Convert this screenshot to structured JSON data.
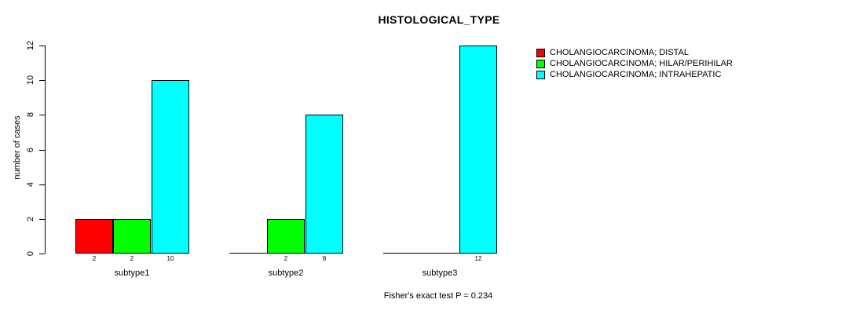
{
  "chart_data": {
    "type": "bar",
    "title": "HISTOLOGICAL_TYPE",
    "ylabel": "number of cases",
    "xlabel": "",
    "categories": [
      "subtype1",
      "subtype2",
      "subtype3"
    ],
    "series": [
      {
        "name": "CHOLANGIOCARCINOMA; DISTAL",
        "color": "#ff0000",
        "values": [
          2,
          0,
          0
        ]
      },
      {
        "name": "CHOLANGIOCARCINOMA; HILAR/PERIHILAR",
        "color": "#00ff00",
        "values": [
          2,
          2,
          0
        ]
      },
      {
        "name": "CHOLANGIOCARCINOMA; INTRAHEPATIC",
        "color": "#00ffff",
        "values": [
          10,
          8,
          12
        ]
      }
    ],
    "bar_labels": [
      [
        "2",
        "2",
        "10"
      ],
      [
        "",
        "2",
        "8"
      ],
      [
        "",
        "",
        "12"
      ]
    ],
    "ylim": [
      0,
      12
    ],
    "yticks": [
      0,
      2,
      4,
      6,
      8,
      10,
      12
    ],
    "grid": false,
    "legend_position": "right",
    "footnote": "Fisher's exact test P = 0.234"
  }
}
